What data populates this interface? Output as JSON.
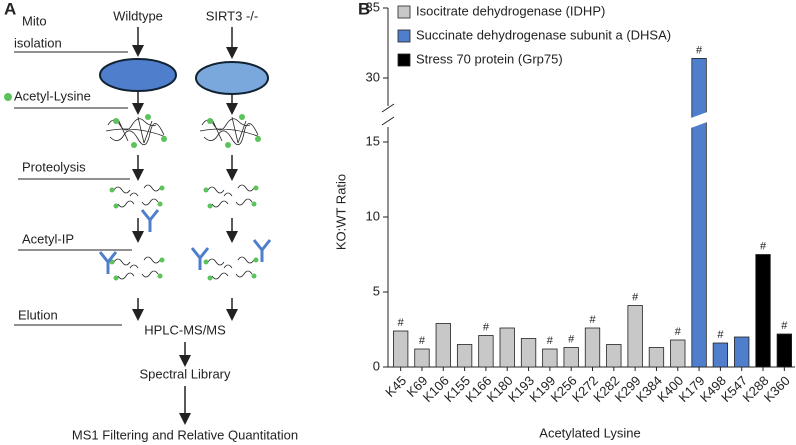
{
  "panel_a": {
    "label": "A",
    "columns": [
      "Wildtype",
      "SIRT3 -/-"
    ],
    "steps": [
      "Mito",
      "isolation",
      "Acetyl-Lysine",
      "Proteolysis",
      "Acetyl-IP",
      "Elution"
    ],
    "outputs": [
      "HPLC-MS/MS",
      "Spectral Library",
      "MS1 Filtering and Relative Quantitation"
    ]
  },
  "chart_data": {
    "type": "bar",
    "panel_label": "B",
    "xlabel": "Acetylated Lysine",
    "ylabel": "KO:WT Ratio",
    "categories": [
      "K45",
      "K69",
      "K106",
      "K155",
      "K166",
      "K180",
      "K193",
      "K199",
      "K256",
      "K272",
      "K282",
      "K299",
      "K384",
      "K400",
      "K179",
      "K498",
      "K547",
      "K288",
      "K360"
    ],
    "series": [
      {
        "name": "Isocitrate dehydrogenase (IDHP)",
        "color": "#c8c8c8",
        "values": [
          2.4,
          1.2,
          2.9,
          1.5,
          2.1,
          2.6,
          1.9,
          1.2,
          1.3,
          2.6,
          1.5,
          4.1,
          1.3,
          1.8,
          null,
          null,
          null,
          null,
          null
        ]
      },
      {
        "name": "Succinate dehydrogenase subunit a (DHSA)",
        "color": "#4f7fcc",
        "values": [
          null,
          null,
          null,
          null,
          null,
          null,
          null,
          null,
          null,
          null,
          null,
          null,
          null,
          null,
          31.4,
          1.6,
          2.0,
          null,
          null
        ]
      },
      {
        "name": "Stress 70 protein (Grp75)",
        "color": "#000000",
        "values": [
          null,
          null,
          null,
          null,
          null,
          null,
          null,
          null,
          null,
          null,
          null,
          null,
          null,
          null,
          null,
          null,
          null,
          7.5,
          2.2
        ]
      }
    ],
    "markers": [
      "#",
      "#",
      null,
      null,
      "#",
      null,
      null,
      "#",
      "#",
      "#",
      null,
      "#",
      null,
      "#",
      "#",
      "#",
      null,
      "#",
      "#"
    ],
    "ylim": [
      0,
      35
    ],
    "axis_break": [
      16,
      28
    ],
    "yticks": [
      0,
      5,
      10,
      15,
      30,
      35
    ],
    "grid": false,
    "legend": "top-left"
  }
}
